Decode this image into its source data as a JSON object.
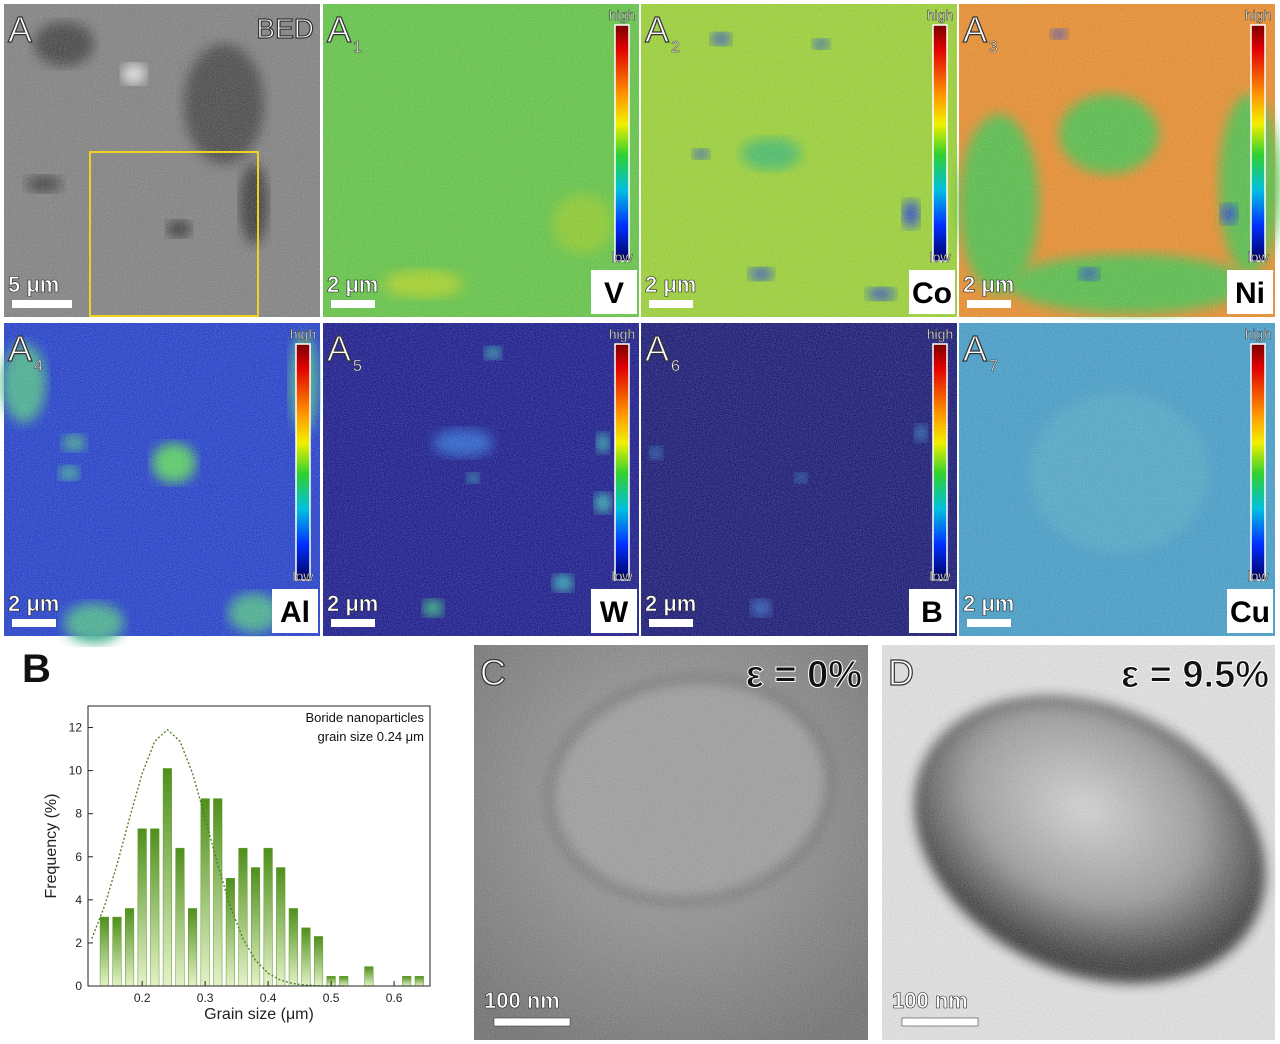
{
  "panels": [
    {
      "label": "A",
      "mode": "BED",
      "scale": "5 μm"
    },
    {
      "label": "A",
      "sub": "1",
      "element": "V",
      "scale": "2 μm",
      "high": "high",
      "low": "low"
    },
    {
      "label": "A",
      "sub": "2",
      "element": "Co",
      "scale": "2 μm",
      "high": "high",
      "low": "low"
    },
    {
      "label": "A",
      "sub": "3",
      "element": "Ni",
      "scale": "2 μm",
      "high": "high",
      "low": "low"
    },
    {
      "label": "A",
      "sub": "4",
      "element": "Al",
      "scale": "2 μm",
      "high": "high",
      "low": "low"
    },
    {
      "label": "A",
      "sub": "5",
      "element": "W",
      "scale": "2 μm",
      "high": "high",
      "low": "low"
    },
    {
      "label": "A",
      "sub": "6",
      "element": "B",
      "scale": "2 μm",
      "high": "high",
      "low": "low"
    },
    {
      "label": "A",
      "sub": "7",
      "element": "Cu",
      "scale": "2 μm",
      "high": "high",
      "low": "low"
    }
  ],
  "chart_data": {
    "type": "histogram",
    "panel_label": "B",
    "annotation": [
      "Boride nanoparticles",
      "grain size 0.24 μm"
    ],
    "x_label": "Grain size (μm)",
    "y_label": "Frequency (%)",
    "bins": [
      0.13,
      0.15,
      0.17,
      0.19,
      0.21,
      0.23,
      0.25,
      0.27,
      0.29,
      0.31,
      0.33,
      0.35,
      0.37,
      0.39,
      0.41,
      0.43,
      0.45,
      0.47,
      0.49,
      0.51,
      0.53,
      0.55,
      0.57,
      0.59,
      0.61,
      0.63,
      0.65
    ],
    "counts": [
      3.2,
      3.2,
      3.6,
      7.3,
      7.3,
      10.1,
      6.4,
      3.6,
      8.7,
      8.7,
      5.0,
      6.4,
      5.5,
      6.4,
      5.5,
      3.6,
      2.7,
      2.3,
      0.45,
      0.45,
      0,
      0.9,
      0,
      0,
      0.45,
      0.45
    ],
    "color": "#5a9a22",
    "fit": {
      "color": "#4a7a2a",
      "x": [
        0.12,
        0.14,
        0.16,
        0.18,
        0.2,
        0.22,
        0.24,
        0.26,
        0.28,
        0.3,
        0.32,
        0.34,
        0.36,
        0.38,
        0.4,
        0.42,
        0.44,
        0.46,
        0.48,
        0.5,
        0.52
      ],
      "values": [
        2.2,
        3.69,
        5.63,
        7.81,
        9.87,
        11.36,
        11.9,
        11.36,
        9.87,
        7.81,
        5.63,
        3.69,
        2.2,
        1.2,
        0.59,
        0.27,
        0.11,
        0.04,
        0.01,
        0,
        0
      ]
    },
    "xlim": [
      0.114,
      0.657
    ],
    "xticks": [
      0.2,
      0.3,
      0.4,
      0.5,
      0.6
    ],
    "ylim": [
      0,
      13
    ],
    "yticks": [
      0,
      2,
      4,
      6,
      8,
      10,
      12
    ]
  },
  "tem": [
    {
      "label": "C",
      "strain": "ε = 0%",
      "scale": "100 nm"
    },
    {
      "label": "D",
      "strain": "ε = 9.5%",
      "scale": "100 nm"
    }
  ]
}
